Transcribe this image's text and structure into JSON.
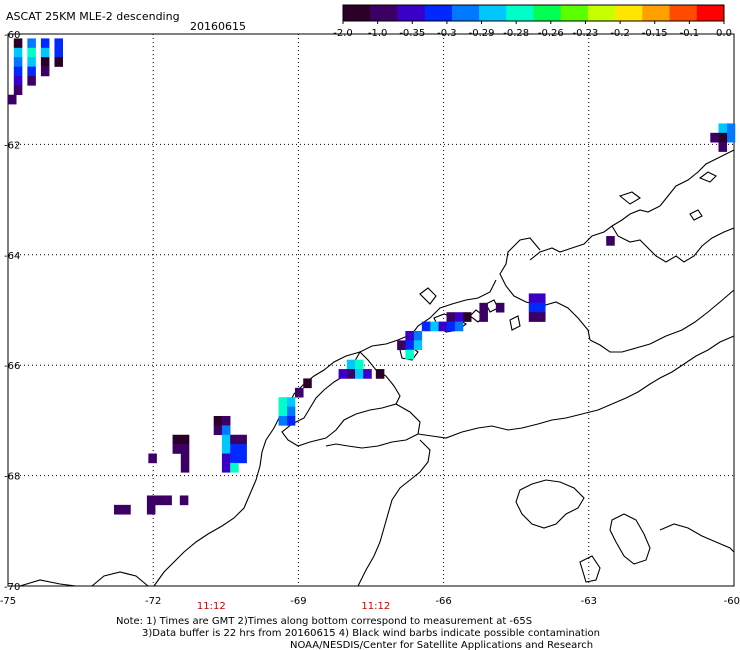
{
  "title": "ASCAT 25KM MLE-2 descending",
  "date": "20160615",
  "colorbar": {
    "labels": [
      "-2.0",
      "-1.0",
      "-0.35",
      "-0.3",
      "-0.29",
      "-0.28",
      "-0.26",
      "-0.23",
      "-0.2",
      "-0.15",
      "-0.1",
      "0.0"
    ],
    "colors": [
      "#2a0028",
      "#3c0064",
      "#3a00c8",
      "#0028ff",
      "#0078ff",
      "#00c8ff",
      "#00ffc8",
      "#00ff50",
      "#5aff00",
      "#c8ff00",
      "#ffe600",
      "#ffa000",
      "#ff4b00",
      "#ff0000"
    ]
  },
  "lat_labels": [
    "-60",
    "-62",
    "-64",
    "-66",
    "-68",
    "-70"
  ],
  "lon_labels": [
    "-75",
    "-72",
    "-69",
    "-66",
    "-63",
    "-60"
  ],
  "time_labels": [
    "11:12",
    "11:12"
  ],
  "notes": {
    "line1": "Note: 1) Times are GMT 2)Times along bottom correspond to measurement at -65S",
    "line2": "3)Data buffer is 22 hrs from 20160615 4) Black wind barbs indicate possible contamination",
    "line3": "NOAA/NESDIS/Center for Satellite Applications and Research"
  },
  "map_data": {
    "lon_range": [
      -75,
      -60
    ],
    "lat_range": [
      -70,
      -60
    ],
    "lat_ticks": [
      -60,
      -62,
      -64,
      -66,
      -68,
      -70
    ],
    "lon_ticks": [
      -75,
      -72,
      -69,
      -66,
      -63,
      -60
    ],
    "time_positions_lon": [
      -70.8,
      -67.4
    ],
    "cells": [
      {
        "lon": -74.88,
        "lat": -60.08,
        "c": 0
      },
      {
        "lon": -74.6,
        "lat": -60.08,
        "c": 4
      },
      {
        "lon": -74.32,
        "lat": -60.08,
        "c": 3
      },
      {
        "lon": -74.04,
        "lat": -60.08,
        "c": 3
      },
      {
        "lon": -74.88,
        "lat": -60.25,
        "c": 5
      },
      {
        "lon": -74.6,
        "lat": -60.25,
        "c": 6
      },
      {
        "lon": -74.32,
        "lat": -60.25,
        "c": 5
      },
      {
        "lon": -74.04,
        "lat": -60.25,
        "c": 3
      },
      {
        "lon": -74.88,
        "lat": -60.42,
        "c": 4
      },
      {
        "lon": -74.6,
        "lat": -60.42,
        "c": 5
      },
      {
        "lon": -74.32,
        "lat": -60.42,
        "c": 0
      },
      {
        "lon": -74.04,
        "lat": -60.42,
        "c": 0
      },
      {
        "lon": -74.88,
        "lat": -60.59,
        "c": 3
      },
      {
        "lon": -74.6,
        "lat": -60.59,
        "c": 3
      },
      {
        "lon": -74.32,
        "lat": -60.59,
        "c": 1
      },
      {
        "lon": -74.88,
        "lat": -60.76,
        "c": 2
      },
      {
        "lon": -74.6,
        "lat": -60.76,
        "c": 1
      },
      {
        "lon": -74.88,
        "lat": -60.93,
        "c": 1
      },
      {
        "lon": -75.0,
        "lat": -61.1,
        "c": 1
      },
      {
        "lon": -60.15,
        "lat": -61.62,
        "c": 4
      },
      {
        "lon": -60.32,
        "lat": -61.62,
        "c": 5
      },
      {
        "lon": -60.15,
        "lat": -61.79,
        "c": 4
      },
      {
        "lon": -60.32,
        "lat": -61.79,
        "c": 0
      },
      {
        "lon": -60.49,
        "lat": -61.79,
        "c": 1
      },
      {
        "lon": -60.32,
        "lat": -61.96,
        "c": 1
      },
      {
        "lon": -62.64,
        "lat": -63.66,
        "c": 1
      },
      {
        "lon": -64.24,
        "lat": -64.7,
        "c": 2
      },
      {
        "lon": -64.07,
        "lat": -64.7,
        "c": 2
      },
      {
        "lon": -64.24,
        "lat": -64.87,
        "c": 3
      },
      {
        "lon": -64.07,
        "lat": -64.87,
        "c": 3
      },
      {
        "lon": -64.24,
        "lat": -65.04,
        "c": 1
      },
      {
        "lon": -64.07,
        "lat": -65.04,
        "c": 1
      },
      {
        "lon": -64.92,
        "lat": -64.87,
        "c": 1
      },
      {
        "lon": -65.26,
        "lat": -64.87,
        "c": 1
      },
      {
        "lon": -65.26,
        "lat": -65.04,
        "c": 1
      },
      {
        "lon": -65.6,
        "lat": -65.04,
        "c": 0
      },
      {
        "lon": -65.77,
        "lat": -65.04,
        "c": 2
      },
      {
        "lon": -65.94,
        "lat": -65.04,
        "c": 1
      },
      {
        "lon": -65.77,
        "lat": -65.21,
        "c": 4
      },
      {
        "lon": -65.94,
        "lat": -65.21,
        "c": 3
      },
      {
        "lon": -66.11,
        "lat": -65.21,
        "c": 2
      },
      {
        "lon": -66.28,
        "lat": -65.21,
        "c": 5
      },
      {
        "lon": -66.45,
        "lat": -65.21,
        "c": 3
      },
      {
        "lon": -66.62,
        "lat": -65.38,
        "c": 4
      },
      {
        "lon": -66.79,
        "lat": -65.38,
        "c": 2
      },
      {
        "lon": -66.62,
        "lat": -65.55,
        "c": 5
      },
      {
        "lon": -66.79,
        "lat": -65.55,
        "c": 3
      },
      {
        "lon": -66.96,
        "lat": -65.55,
        "c": 1
      },
      {
        "lon": -66.79,
        "lat": -65.72,
        "c": 6
      },
      {
        "lon": -68.0,
        "lat": -65.9,
        "c": 5
      },
      {
        "lon": -67.83,
        "lat": -65.9,
        "c": 6
      },
      {
        "lon": -68.0,
        "lat": -66.07,
        "c": 1
      },
      {
        "lon": -67.83,
        "lat": -66.07,
        "c": 5
      },
      {
        "lon": -68.17,
        "lat": -66.07,
        "c": 2
      },
      {
        "lon": -67.66,
        "lat": -66.07,
        "c": 2
      },
      {
        "lon": -67.4,
        "lat": -66.07,
        "c": 0
      },
      {
        "lon": -68.9,
        "lat": -66.24,
        "c": 0
      },
      {
        "lon": -69.07,
        "lat": -66.41,
        "c": 1
      },
      {
        "lon": -69.24,
        "lat": -66.58,
        "c": 5
      },
      {
        "lon": -69.41,
        "lat": -66.58,
        "c": 6
      },
      {
        "lon": -69.24,
        "lat": -66.75,
        "c": 4
      },
      {
        "lon": -69.41,
        "lat": -66.75,
        "c": 6
      },
      {
        "lon": -69.24,
        "lat": -66.92,
        "c": 3
      },
      {
        "lon": -69.41,
        "lat": -66.92,
        "c": 4
      },
      {
        "lon": -70.75,
        "lat": -66.92,
        "c": 0
      },
      {
        "lon": -70.58,
        "lat": -66.92,
        "c": 1
      },
      {
        "lon": -70.75,
        "lat": -67.09,
        "c": 1
      },
      {
        "lon": -70.58,
        "lat": -67.09,
        "c": 4
      },
      {
        "lon": -70.58,
        "lat": -67.26,
        "c": 5
      },
      {
        "lon": -70.41,
        "lat": -67.26,
        "c": 1
      },
      {
        "lon": -70.24,
        "lat": -67.26,
        "c": 1
      },
      {
        "lon": -70.58,
        "lat": -67.43,
        "c": 5
      },
      {
        "lon": -70.41,
        "lat": -67.43,
        "c": 3
      },
      {
        "lon": -70.24,
        "lat": -67.43,
        "c": 3
      },
      {
        "lon": -70.58,
        "lat": -67.6,
        "c": 2
      },
      {
        "lon": -70.41,
        "lat": -67.6,
        "c": 3
      },
      {
        "lon": -70.24,
        "lat": -67.6,
        "c": 3
      },
      {
        "lon": -70.58,
        "lat": -67.77,
        "c": 2
      },
      {
        "lon": -70.41,
        "lat": -67.77,
        "c": 6
      },
      {
        "lon": -71.6,
        "lat": -67.26,
        "c": 0
      },
      {
        "lon": -71.43,
        "lat": -67.26,
        "c": 0
      },
      {
        "lon": -71.6,
        "lat": -67.43,
        "c": 1
      },
      {
        "lon": -71.43,
        "lat": -67.43,
        "c": 1
      },
      {
        "lon": -71.43,
        "lat": -67.6,
        "c": 1
      },
      {
        "lon": -71.43,
        "lat": -67.77,
        "c": 1
      },
      {
        "lon": -72.1,
        "lat": -67.6,
        "c": 1
      },
      {
        "lon": -72.13,
        "lat": -68.36,
        "c": 1
      },
      {
        "lon": -71.96,
        "lat": -68.36,
        "c": 1
      },
      {
        "lon": -71.79,
        "lat": -68.36,
        "c": 1
      },
      {
        "lon": -71.45,
        "lat": -68.36,
        "c": 1
      },
      {
        "lon": -72.13,
        "lat": -68.53,
        "c": 1
      },
      {
        "lon": -72.81,
        "lat": -68.53,
        "c": 1
      },
      {
        "lon": -72.64,
        "lat": -68.53,
        "c": 1
      }
    ]
  }
}
